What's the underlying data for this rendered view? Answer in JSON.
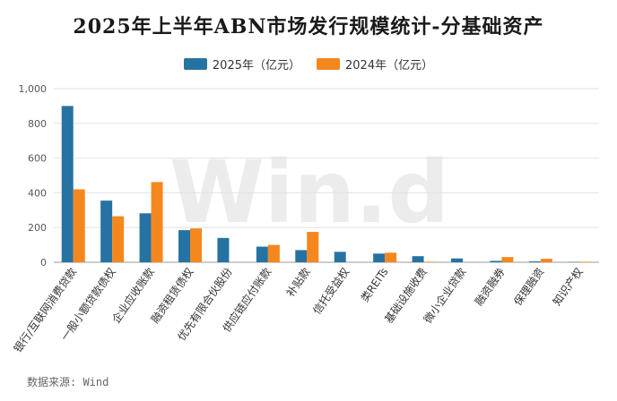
{
  "title": "2025年上半年ABN市场发行规模统计-分基础资产",
  "source": "数据来源: Wind",
  "watermark": "Win.d",
  "colors": {
    "s2025": "#2673a3",
    "s2024": "#f5871f"
  },
  "chart_data": {
    "type": "bar",
    "categories": [
      "银行/互联网消费贷款",
      "一般小额贷款债权",
      "企业应收账款",
      "融资租赁债权",
      "优先有限合伙股份",
      "供应链应付账款",
      "补贴款",
      "信托受益权",
      "类REITs",
      "基础设施收费",
      "微小企业贷款",
      "融资融券",
      "保理融资",
      "知识产权"
    ],
    "series": [
      {
        "name": "2025年（亿元）",
        "values": [
          900,
          355,
          282,
          185,
          140,
          90,
          70,
          60,
          50,
          35,
          22,
          8,
          5,
          2
        ]
      },
      {
        "name": "2024年（亿元）",
        "values": [
          420,
          265,
          462,
          195,
          0,
          100,
          175,
          0,
          55,
          3,
          0,
          30,
          20,
          3
        ]
      }
    ],
    "ylim": [
      0,
      1000
    ],
    "yticks": [
      "0",
      "200",
      "400",
      "600",
      "800",
      "1,000"
    ],
    "grid": true,
    "legend": "top-center"
  }
}
